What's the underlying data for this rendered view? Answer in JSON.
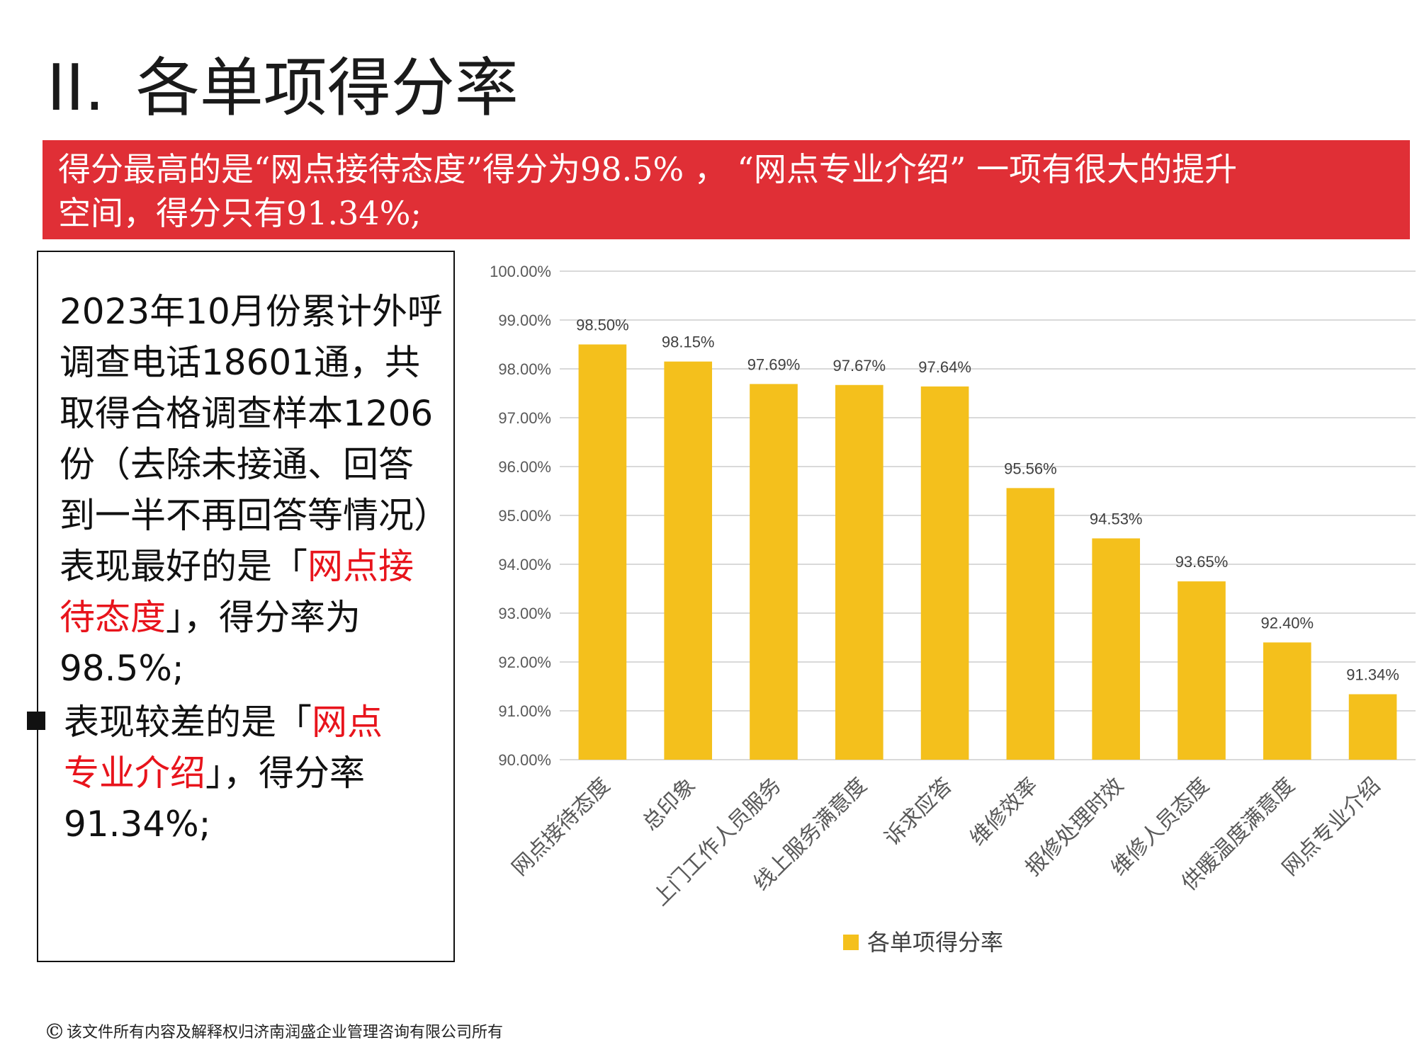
{
  "title": {
    "number": "II.",
    "text": "各单项得分率"
  },
  "banner": {
    "line1": "得分最高的是“网点接待态度”得分为98.5% ， “网点专业介绍” 一项有很大的提升",
    "line2": "空间，得分只有91.34%;"
  },
  "summary": {
    "line1": "2023年10月份累计外呼",
    "line2": "调查电话18601通，共",
    "line3": "取得合格调查样本1206",
    "line4": "份（去除未接通、回答",
    "line5": "到一半不再回答等情况）",
    "line6_prefix": "表现最好的是「",
    "line6_highlight": "网点接",
    "line7_highlight": "待态度",
    "line7_suffix": "」，得分率为",
    "line8": "98.5%;",
    "bullet_line1_prefix": "表现较差的是「",
    "bullet_line1_highlight": "网点",
    "bullet_line2_highlight": "专业介绍",
    "bullet_line2_suffix": "」，得分率",
    "bullet_line3": "91.34%;"
  },
  "footer": {
    "symbol": "©",
    "text": "该文件所有内容及解释权归济南润盛企业管理咨询有限公司所有"
  },
  "colors": {
    "bar": "#f4c01c",
    "banner": "#e02f36",
    "highlight": "#e8141c",
    "grid": "#d9d9d9"
  },
  "chart_data": {
    "type": "bar",
    "categories": [
      "网点接待态度",
      "总印象",
      "上门工作人员服务",
      "线上服务满意度",
      "诉求应答",
      "维修效率",
      "报修处理时效",
      "维修人员态度",
      "供暖温度满意度",
      "网点专业介绍"
    ],
    "series": [
      {
        "name": "各单项得分率",
        "values": [
          98.5,
          98.15,
          97.69,
          97.67,
          97.64,
          95.56,
          94.53,
          93.65,
          92.4,
          91.34
        ]
      }
    ],
    "value_labels": [
      "98.50%",
      "98.15%",
      "97.69%",
      "97.67%",
      "97.64%",
      "95.56%",
      "94.53%",
      "93.65%",
      "92.40%",
      "91.34%"
    ],
    "yticks": [
      "90.00%",
      "91.00%",
      "92.00%",
      "93.00%",
      "94.00%",
      "95.00%",
      "96.00%",
      "97.00%",
      "98.00%",
      "99.00%",
      "100.00%"
    ],
    "ylim": [
      90,
      100
    ],
    "grid": true,
    "legend_position": "bottom",
    "title": "",
    "xlabel": "",
    "ylabel": ""
  }
}
